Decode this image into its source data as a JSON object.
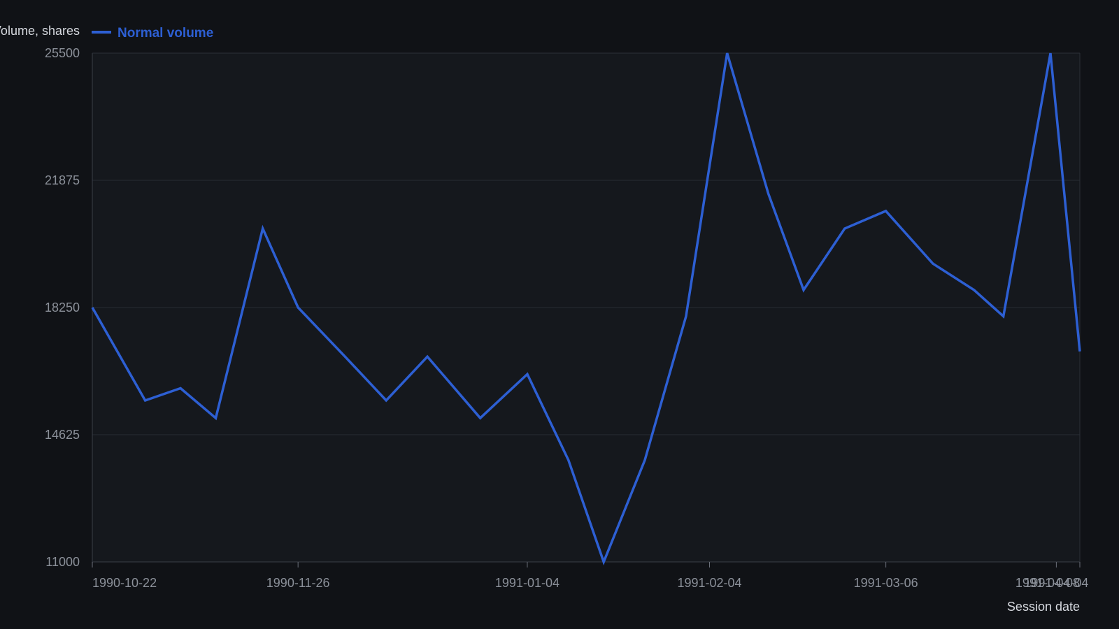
{
  "chart_data": {
    "type": "line",
    "xlabel": "Session date",
    "ylabel": "Volume, shares",
    "ylim": [
      11000,
      25500
    ],
    "yticks": [
      11000,
      14625,
      18250,
      21875,
      25500
    ],
    "xlim": [
      "1990-10-22",
      "1991-04-08"
    ],
    "xticks": [
      "1990-10-22",
      "1990-11-26",
      "1991-01-04",
      "1991-02-04",
      "1991-03-06",
      "1991-04-04",
      "1991-04-08"
    ],
    "grid": true,
    "legend_position": "top-left",
    "series": [
      {
        "name": "Normal volume",
        "color": "#2d5fd3",
        "points": [
          {
            "x": "1990-10-22",
            "y": 18250
          },
          {
            "x": "1990-10-31",
            "y": 15600
          },
          {
            "x": "1990-11-06",
            "y": 15950
          },
          {
            "x": "1990-11-12",
            "y": 15100
          },
          {
            "x": "1990-11-20",
            "y": 20500
          },
          {
            "x": "1990-11-26",
            "y": 18250
          },
          {
            "x": "1990-12-04",
            "y": 16850
          },
          {
            "x": "1990-12-11",
            "y": 15600
          },
          {
            "x": "1990-12-18",
            "y": 16850
          },
          {
            "x": "1990-12-27",
            "y": 15100
          },
          {
            "x": "1991-01-04",
            "y": 16350
          },
          {
            "x": "1991-01-11",
            "y": 13900
          },
          {
            "x": "1991-01-17",
            "y": 11000
          },
          {
            "x": "1991-01-24",
            "y": 13900
          },
          {
            "x": "1991-01-31",
            "y": 18000
          },
          {
            "x": "1991-02-07",
            "y": 25500
          },
          {
            "x": "1991-02-14",
            "y": 21500
          },
          {
            "x": "1991-02-20",
            "y": 18750
          },
          {
            "x": "1991-02-27",
            "y": 20500
          },
          {
            "x": "1991-03-06",
            "y": 21000
          },
          {
            "x": "1991-03-14",
            "y": 19500
          },
          {
            "x": "1991-03-21",
            "y": 18750
          },
          {
            "x": "1991-03-26",
            "y": 18000
          },
          {
            "x": "1991-04-03",
            "y": 25500
          },
          {
            "x": "1991-04-08",
            "y": 17000
          }
        ]
      }
    ]
  }
}
